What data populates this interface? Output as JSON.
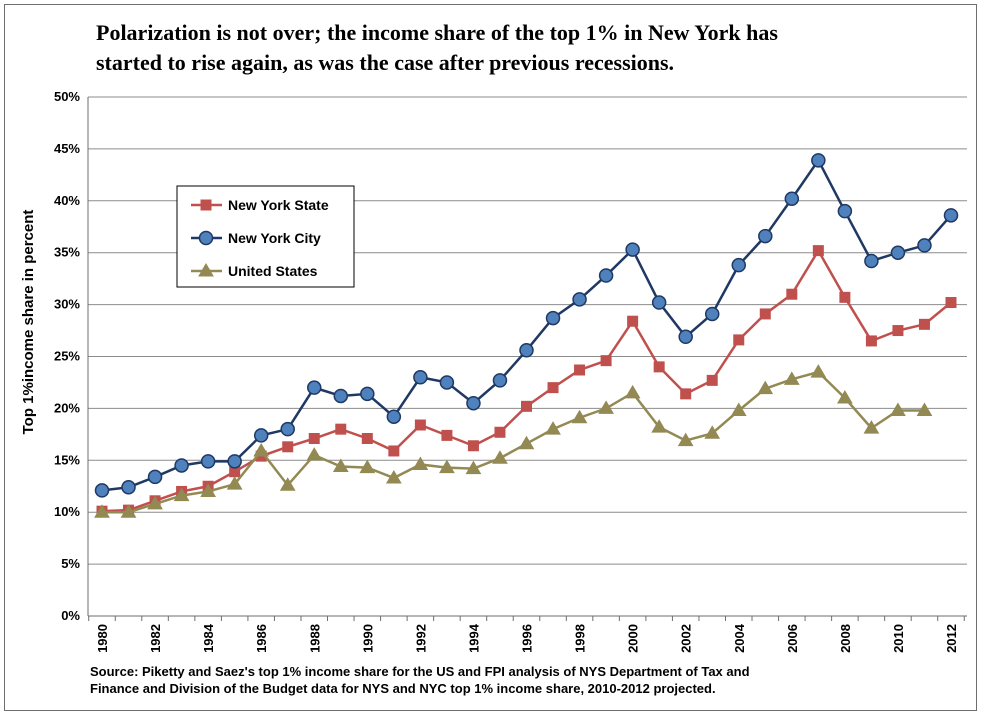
{
  "chart_data": {
    "type": "line",
    "title_lines": [
      "Polarization is not over; the income share of the top 1% in New York has",
      "started to rise again, as was the case after previous recessions."
    ],
    "ylabel": "Top 1%income share in percent",
    "xlabel": "",
    "ylim": [
      0,
      50
    ],
    "yticks": [
      "0%",
      "5%",
      "10%",
      "15%",
      "20%",
      "25%",
      "30%",
      "35%",
      "40%",
      "45%",
      "50%"
    ],
    "x": [
      1980,
      1981,
      1982,
      1983,
      1984,
      1985,
      1986,
      1987,
      1988,
      1989,
      1990,
      1991,
      1992,
      1993,
      1994,
      1995,
      1996,
      1997,
      1998,
      1999,
      2000,
      2001,
      2002,
      2003,
      2004,
      2005,
      2006,
      2007,
      2008,
      2009,
      2010,
      2011,
      2012
    ],
    "xtick_labels": [
      "1980",
      "1982",
      "1984",
      "1986",
      "1988",
      "1990",
      "1992",
      "1994",
      "1996",
      "1998",
      "2000",
      "2002",
      "2004",
      "2006",
      "2008",
      "2010",
      "2012"
    ],
    "grid": true,
    "legend_position": "upper-left",
    "series": [
      {
        "name": "New York State",
        "color": "#c0504d",
        "marker": "square",
        "values": [
          10.1,
          10.2,
          11.1,
          12.0,
          12.5,
          13.9,
          15.4,
          16.3,
          17.1,
          18.0,
          17.1,
          15.9,
          18.4,
          17.4,
          16.4,
          17.7,
          20.2,
          22.0,
          23.7,
          24.6,
          28.4,
          24.0,
          21.4,
          22.7,
          26.6,
          29.1,
          31.0,
          35.2,
          30.7,
          26.5,
          27.5,
          28.1,
          30.2
        ]
      },
      {
        "name": "New York City",
        "color": "#1f3864",
        "markerFill": "#4f81bd",
        "marker": "circle",
        "values": [
          12.1,
          12.4,
          13.4,
          14.5,
          14.9,
          14.9,
          17.4,
          18.0,
          22.0,
          21.2,
          21.4,
          19.2,
          23.0,
          22.5,
          20.5,
          22.7,
          25.6,
          28.7,
          30.5,
          32.8,
          35.3,
          30.2,
          26.9,
          29.1,
          33.8,
          36.6,
          40.2,
          43.9,
          39.0,
          34.2,
          35.0,
          35.7,
          38.6
        ]
      },
      {
        "name": "United States",
        "color": "#938953",
        "marker": "triangle",
        "values": [
          10.0,
          10.0,
          10.8,
          11.6,
          12.0,
          12.7,
          15.9,
          12.6,
          15.5,
          14.4,
          14.3,
          13.3,
          14.6,
          14.3,
          14.2,
          15.2,
          16.6,
          18.0,
          19.1,
          20.0,
          21.5,
          18.2,
          16.9,
          17.6,
          19.8,
          21.9,
          22.8,
          23.5,
          21.0,
          18.1,
          19.8,
          19.8,
          null
        ]
      }
    ]
  },
  "source_lines": [
    "Source: Piketty and Saez's top 1% income share for the US and FPI analysis of NYS Department of Tax and",
    "Finance and Division of the Budget data for NYS and NYC top 1% income share, 2010-2012 projected."
  ]
}
